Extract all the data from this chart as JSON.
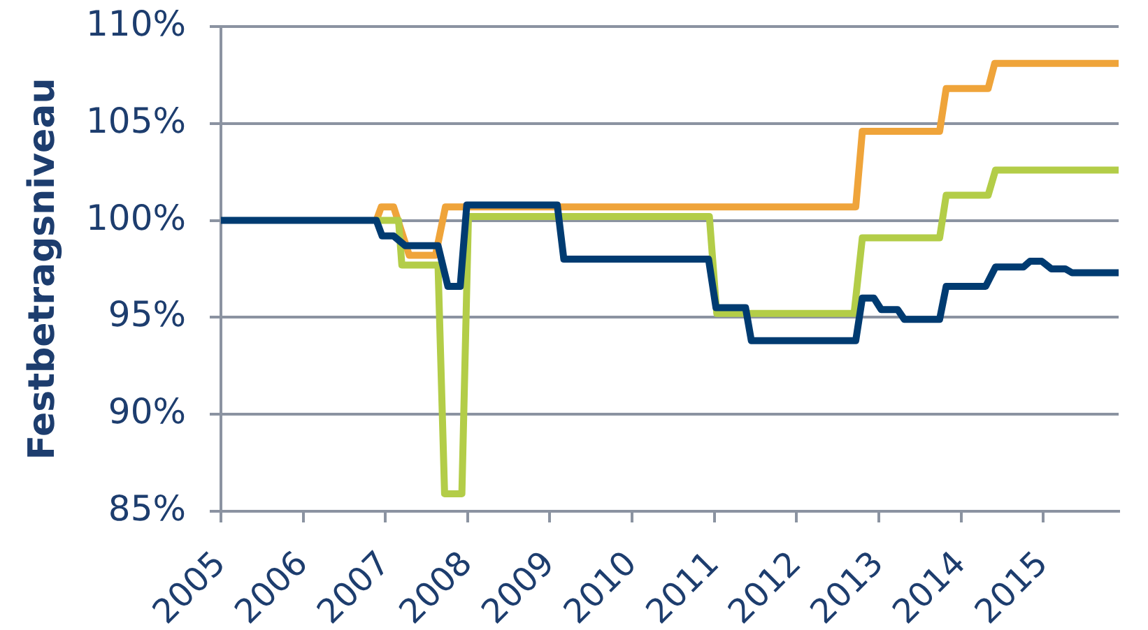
{
  "chart_data": {
    "type": "line",
    "ylabel": "Festbetragsniveau",
    "xlim": [
      2005,
      2015.917
    ],
    "xticks": [
      2005,
      2006,
      2007,
      2008,
      2009,
      2010,
      2011,
      2012,
      2013,
      2014,
      2015
    ],
    "ylim": [
      85,
      110
    ],
    "yticks": [
      {
        "value": 85,
        "label": "85%"
      },
      {
        "value": 90,
        "label": "90%"
      },
      {
        "value": 95,
        "label": "95%"
      },
      {
        "value": 100,
        "label": "100%"
      },
      {
        "value": 105,
        "label": "105%"
      },
      {
        "value": 110,
        "label": "110%"
      }
    ],
    "grid": "y",
    "line_style": "solid",
    "series": [
      {
        "color": "#efa43a",
        "x": [
          2006.89,
          2006.95,
          2007.1,
          2007.29,
          2007.61,
          2007.73,
          2012.72,
          2012.8,
          2013.74,
          2013.82,
          2014.33,
          2014.41,
          2015.917
        ],
        "values": [
          100,
          100.7,
          100.7,
          98.2,
          98.2,
          100.7,
          100.7,
          104.6,
          104.6,
          106.8,
          106.8,
          108.1,
          108.1
        ]
      },
      {
        "color": "#b3cd48",
        "x": [
          2006.89,
          2007.16,
          2007.2,
          2007.64,
          2007.72,
          2007.93,
          2008.01,
          2010.94,
          2011.03,
          2012.7,
          2012.8,
          2013.74,
          2013.82,
          2014.33,
          2014.42,
          2015.917
        ],
        "values": [
          100,
          100,
          97.7,
          97.7,
          85.9,
          85.9,
          100.2,
          100.2,
          95.2,
          95.2,
          99.1,
          99.1,
          101.3,
          101.3,
          102.6,
          102.6
        ]
      },
      {
        "color": "#003b71",
        "x": [
          2005,
          2006.89,
          2006.96,
          2007.1,
          2007.24,
          2007.64,
          2007.76,
          2007.91,
          2007.99,
          2009.09,
          2009.17,
          2010.93,
          2011.02,
          2011.38,
          2011.45,
          2012.72,
          2012.8,
          2012.94,
          2013.03,
          2013.23,
          2013.31,
          2013.74,
          2013.82,
          2014.3,
          2014.42,
          2014.76,
          2014.84,
          2014.98,
          2015.1,
          2015.27,
          2015.35,
          2015.917
        ],
        "values": [
          100,
          100,
          99.2,
          99.2,
          98.7,
          98.7,
          96.6,
          96.6,
          100.8,
          100.8,
          98,
          98,
          95.5,
          95.5,
          93.8,
          93.8,
          96,
          96,
          95.4,
          95.4,
          94.9,
          94.9,
          96.6,
          96.6,
          97.6,
          97.6,
          97.9,
          97.9,
          97.5,
          97.5,
          97.3,
          97.3
        ]
      }
    ]
  }
}
